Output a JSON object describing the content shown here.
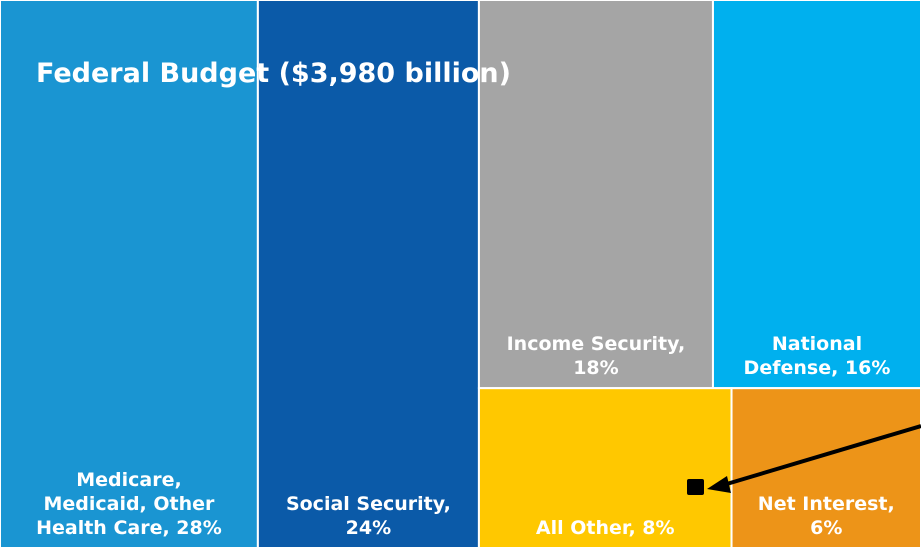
{
  "chart_data": {
    "type": "treemap",
    "title": "Federal Budget ($3,980 billion)",
    "cells": [
      {
        "name": "Medicare, Medicaid, Other Health Care",
        "value": 28,
        "label_lines": [
          "Medicare,",
          "Medicaid, Other",
          "Health Care, 28%"
        ],
        "color": "#1a95d2"
      },
      {
        "name": "Social Security",
        "value": 24,
        "label_lines": [
          "Social Security,",
          "24%"
        ],
        "color": "#0b5aa8"
      },
      {
        "name": "Income Security",
        "value": 18,
        "label_lines": [
          "Income Security,",
          "18%"
        ],
        "color": "#a5a5a5"
      },
      {
        "name": "National Defense",
        "value": 16,
        "label_lines": [
          "National",
          "Defense, 16%"
        ],
        "color": "#00b0ee"
      },
      {
        "name": "All Other",
        "value": 8,
        "label_lines": [
          "All Other, 8%"
        ],
        "color": "#ffc800"
      },
      {
        "name": "Net Interest",
        "value": 6,
        "label_lines": [
          "Net Interest,",
          "6%"
        ],
        "color": "#ed9418"
      }
    ],
    "legend": "none"
  },
  "colors": {
    "border": "#ffffff",
    "label_text": "#ffffff",
    "annotation_arrow": "#000000"
  }
}
